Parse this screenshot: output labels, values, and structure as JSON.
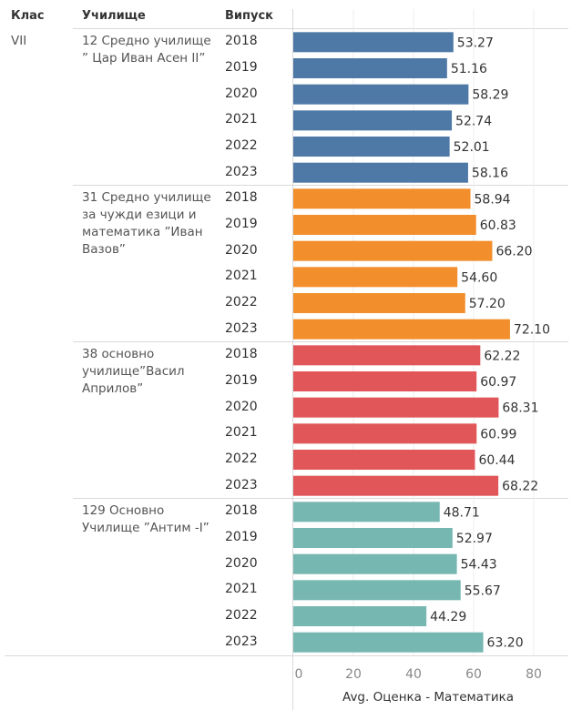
{
  "headers": {
    "klas": "Клас",
    "school": "Училище",
    "year": "Випуск"
  },
  "klas_value": "VII",
  "schools": [
    {
      "name": "12 Средно училище ” Цар Иван Асен II”",
      "color": "#4e79a7",
      "years": [
        "2018",
        "2019",
        "2020",
        "2021",
        "2022",
        "2023"
      ],
      "values": [
        53.27,
        51.16,
        58.29,
        52.74,
        52.01,
        58.16
      ],
      "labels": [
        "53.27",
        "51.16",
        "58.29",
        "52.74",
        "52.01",
        "58.16"
      ]
    },
    {
      "name": "31 Средно училище за чужди езици и математика ”Иван Вазов”",
      "color": "#f28e2b",
      "years": [
        "2018",
        "2019",
        "2020",
        "2021",
        "2022",
        "2023"
      ],
      "values": [
        58.94,
        60.83,
        66.2,
        54.6,
        57.2,
        72.1
      ],
      "labels": [
        "58.94",
        "60.83",
        "66.20",
        "54.60",
        "57.20",
        "72.10"
      ]
    },
    {
      "name": "38 основно училище”Васил Априлов”",
      "color": "#e15759",
      "years": [
        "2018",
        "2019",
        "2020",
        "2021",
        "2022",
        "2023"
      ],
      "values": [
        62.22,
        60.97,
        68.31,
        60.99,
        60.44,
        68.22
      ],
      "labels": [
        "62.22",
        "60.97",
        "68.31",
        "60.99",
        "60.44",
        "68.22"
      ]
    },
    {
      "name": "129 Основно Училище ”Антим -I”",
      "color": "#76b7b2",
      "years": [
        "2018",
        "2019",
        "2020",
        "2021",
        "2022",
        "2023"
      ],
      "values": [
        48.71,
        52.97,
        54.43,
        55.67,
        44.29,
        63.2
      ],
      "labels": [
        "48.71",
        "52.97",
        "54.43",
        "55.67",
        "44.29",
        "63.20"
      ]
    }
  ],
  "chart_data": {
    "type": "bar",
    "orientation": "horizontal",
    "xlabel": "Avg. Оценка - Математика",
    "xlim": [
      0,
      90
    ],
    "xticks": [
      0,
      20,
      40,
      60,
      80
    ],
    "xtick_labels": [
      "0",
      "20",
      "40",
      "60",
      "80"
    ],
    "grid": true,
    "categories": [
      "2018",
      "2019",
      "2020",
      "2021",
      "2022",
      "2023"
    ],
    "series": [
      {
        "name": "12 Средно училище ” Цар Иван Асен II”",
        "values": [
          53.27,
          51.16,
          58.29,
          52.74,
          52.01,
          58.16
        ]
      },
      {
        "name": "31 Средно училище за чужди езици и математика ”Иван Вазов”",
        "values": [
          58.94,
          60.83,
          66.2,
          54.6,
          57.2,
          72.1
        ]
      },
      {
        "name": "38 основно училище”Васил Априлов”",
        "values": [
          62.22,
          60.97,
          68.31,
          60.99,
          60.44,
          68.22
        ]
      },
      {
        "name": "129 Основно Училище ”Антим -I”",
        "values": [
          48.71,
          52.97,
          54.43,
          55.67,
          44.29,
          63.2
        ]
      }
    ]
  }
}
